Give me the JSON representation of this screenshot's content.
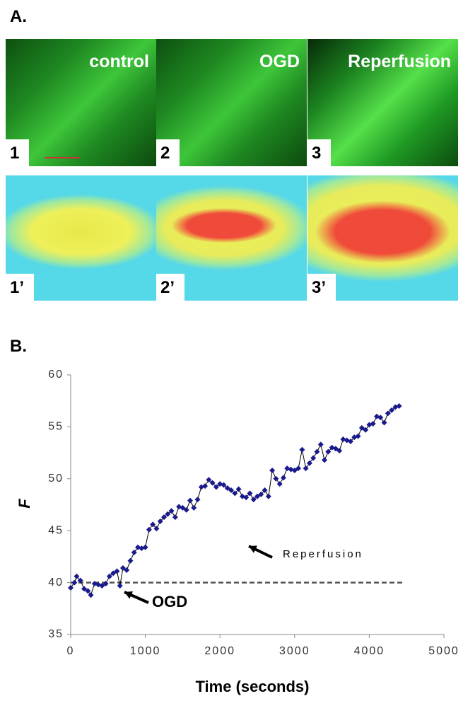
{
  "panel_labels": [
    "A.",
    "B."
  ],
  "images": [
    {
      "caption": "control",
      "number": "1"
    },
    {
      "caption": "OGD",
      "number": "2"
    },
    {
      "caption": "Reperfusion",
      "number": "3"
    },
    {
      "number": "1’"
    },
    {
      "number": "2’"
    },
    {
      "number": "3’"
    }
  ],
  "chart_data": {
    "type": "line",
    "xlabel": "Time (seconds)",
    "ylabel": "F",
    "xlim": [
      0,
      5000
    ],
    "xticks": [
      0,
      1000,
      2000,
      3000,
      4000,
      5000
    ],
    "ylim": [
      35,
      60
    ],
    "yticks": [
      35,
      40,
      45,
      50,
      55,
      60
    ],
    "annotations": [
      "OGD",
      "Reperfusion"
    ],
    "reference_line": {
      "y": 40,
      "x": [
        0,
        4450
      ]
    },
    "series": [
      {
        "color": "#1a1a8c",
        "x": [
          0,
          50,
          80,
          130,
          180,
          230,
          270,
          320,
          370,
          420,
          470,
          520,
          570,
          620,
          660,
          700,
          750,
          800,
          850,
          900,
          950,
          1000,
          1050,
          1100,
          1150,
          1200,
          1250,
          1300,
          1350,
          1400,
          1450,
          1500,
          1550,
          1600,
          1650,
          1700,
          1750,
          1800,
          1850,
          1900,
          1950,
          2000,
          2050,
          2100,
          2150,
          2200,
          2250,
          2300,
          2350,
          2400,
          2450,
          2500,
          2550,
          2600,
          2650,
          2700,
          2750,
          2800,
          2850,
          2900,
          2950,
          3000,
          3050,
          3100,
          3150,
          3200,
          3250,
          3300,
          3350,
          3400,
          3450,
          3500,
          3550,
          3600,
          3650,
          3700,
          3750,
          3800,
          3850,
          3900,
          3950,
          4000,
          4050,
          4100,
          4150,
          4200,
          4250,
          4300,
          4350,
          4400
        ],
        "values": [
          39.5,
          40.0,
          40.6,
          40.2,
          39.4,
          39.2,
          38.8,
          39.9,
          39.8,
          39.7,
          39.9,
          40.6,
          40.9,
          41.1,
          39.7,
          41.4,
          41.2,
          42.1,
          42.9,
          43.4,
          43.3,
          43.4,
          45.1,
          45.6,
          45.2,
          45.9,
          46.3,
          46.6,
          46.9,
          46.3,
          47.3,
          47.2,
          47.0,
          47.9,
          47.2,
          48.0,
          49.2,
          49.3,
          49.9,
          49.6,
          49.2,
          49.5,
          49.4,
          49.1,
          48.9,
          48.6,
          49.0,
          48.3,
          48.2,
          48.6,
          48.0,
          48.3,
          48.5,
          48.9,
          48.3,
          50.8,
          50.0,
          49.5,
          50.1,
          51.0,
          50.9,
          50.8,
          51.0,
          52.8,
          51.0,
          51.5,
          52.0,
          52.6,
          53.3,
          51.8,
          52.6,
          53.0,
          52.9,
          52.7,
          53.8,
          53.7,
          53.6,
          54.0,
          54.1,
          54.9,
          54.7,
          55.2,
          55.3,
          56.0,
          55.9,
          55.4,
          56.3,
          56.6,
          56.9,
          57.0
        ]
      }
    ]
  }
}
